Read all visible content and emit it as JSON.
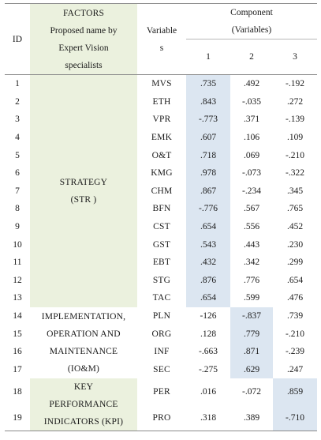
{
  "header": {
    "id": "ID",
    "factors_title": "FACTORS",
    "factors_sub": [
      "Proposed name by",
      "Expert Vision",
      "specialists"
    ],
    "variables": [
      "Variable",
      "s"
    ],
    "component_title": "Component",
    "component_sub": "(Variables)",
    "components": [
      "1",
      "2",
      "3"
    ]
  },
  "groups": [
    {
      "lines": [
        "STRATEGY",
        "(STR )"
      ],
      "color": "green"
    },
    {
      "lines": [
        "IMPLEMENTATION,",
        "OPERATION AND",
        "MAINTENANCE",
        "(IO&M)"
      ],
      "color": "none"
    },
    {
      "lines": [
        "KEY",
        "PERFORMANCE",
        "INDICATORS (KPI)"
      ],
      "color": "green"
    }
  ],
  "rows": [
    {
      "id": "1",
      "var": "MVS",
      "c1": ".735",
      "c2": ".492",
      "c3": "-.192"
    },
    {
      "id": "2",
      "var": "ETH",
      "c1": ".843",
      "c2": "-.035",
      "c3": ".272"
    },
    {
      "id": "3",
      "var": "VPR",
      "c1": "-.773",
      "c2": ".371",
      "c3": "-.139"
    },
    {
      "id": "4",
      "var": "EMK",
      "c1": ".607",
      "c2": ".106",
      "c3": ".109"
    },
    {
      "id": "5",
      "var": "O&T",
      "c1": ".718",
      "c2": ".069",
      "c3": "-.210"
    },
    {
      "id": "6",
      "var": "KMG",
      "c1": ".978",
      "c2": "-.073",
      "c3": "-.322"
    },
    {
      "id": "7",
      "var": "CHM",
      "c1": ".867",
      "c2": "-.234",
      "c3": ".345"
    },
    {
      "id": "8",
      "var": "BFN",
      "c1": "-.776",
      "c2": ".567",
      "c3": ".765"
    },
    {
      "id": "9",
      "var": "CST",
      "c1": ".654",
      "c2": ".556",
      "c3": ".452"
    },
    {
      "id": "10",
      "var": "GST",
      "c1": ".543",
      "c2": ".443",
      "c3": ".230"
    },
    {
      "id": "11",
      "var": "EBT",
      "c1": ".432",
      "c2": ".342",
      "c3": ".299"
    },
    {
      "id": "12",
      "var": "STG",
      "c1": ".876",
      "c2": ".776",
      "c3": ".654"
    },
    {
      "id": "13",
      "var": "TAC",
      "c1": ".654",
      "c2": ".599",
      "c3": ".476"
    },
    {
      "id": "14",
      "var": "PLN",
      "c1": "-126",
      "c2": "-.837",
      "c3": ".739"
    },
    {
      "id": "15",
      "var": "ORG",
      "c1": ".128",
      "c2": ".779",
      "c3": "-.210"
    },
    {
      "id": "16",
      "var": "INF",
      "c1": "-.663",
      "c2": ".871",
      "c3": "-.239"
    },
    {
      "id": "17",
      "var": "SEC",
      "c1": "-.275",
      "c2": ".629",
      "c3": ".247"
    },
    {
      "id": "18",
      "var": "PER",
      "c1": ".016",
      "c2": "-.072",
      "c3": ".859"
    },
    {
      "id": "19",
      "var": "PRO",
      "c1": ".318",
      "c2": ".389",
      "c3": "-.710"
    }
  ],
  "colors": {
    "green": "#ebf1de",
    "blue": "#dce6f1",
    "rule": "#8a8a8a"
  }
}
